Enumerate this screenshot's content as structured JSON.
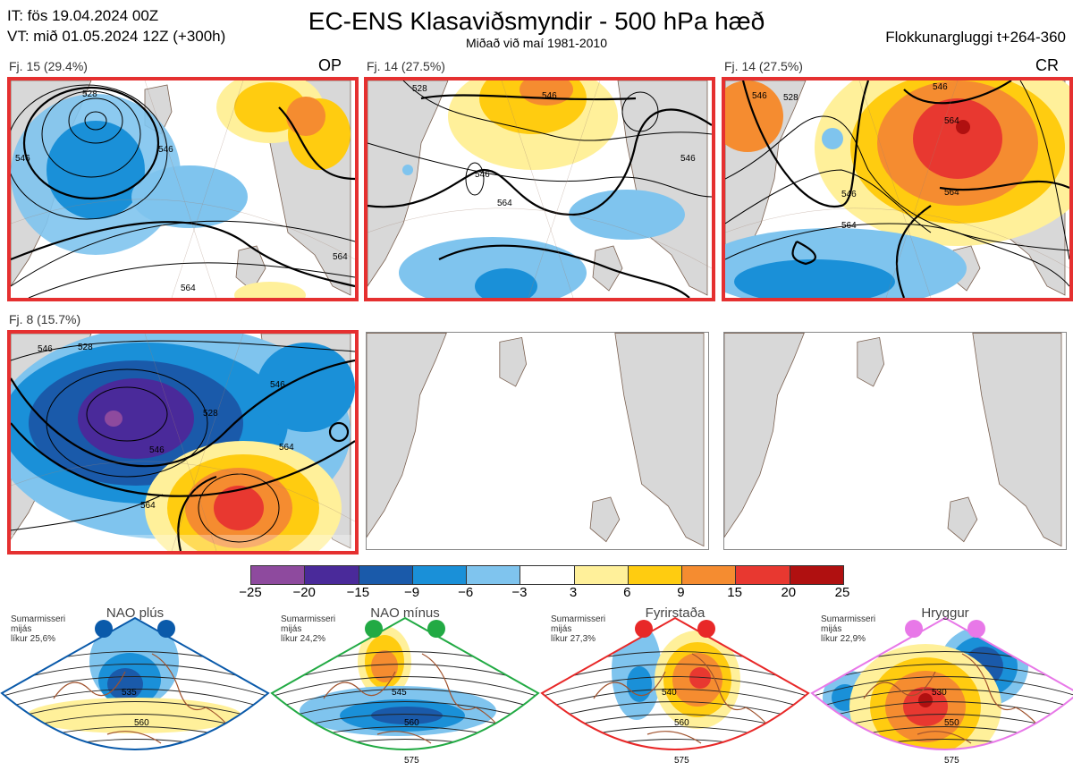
{
  "header": {
    "init_time": "IT: fös 19.04.2024 00Z",
    "valid_time": "VT: mið 01.05.2024 12Z  (+300h)",
    "title": "EC-ENS Klasaviðsmyndir - 500 hPa hæð",
    "subtitle": "Miðað við maí 1981-2010",
    "window": "Flokkunargluggi t+264-360"
  },
  "clusters": [
    {
      "label": "Fj. 15 (29.4%)",
      "code": "OP",
      "highlighted": true
    },
    {
      "label": "Fj. 14 (27.5%)",
      "code": "",
      "highlighted": true
    },
    {
      "label": "Fj. 14 (27.5%)",
      "code": "CR",
      "highlighted": true
    },
    {
      "label": "Fj. 8 (15.7%)",
      "code": "",
      "highlighted": true
    },
    {
      "label": "",
      "code": "",
      "highlighted": false
    },
    {
      "label": "",
      "code": "",
      "highlighted": false
    }
  ],
  "contour_labels": {
    "p1": [
      "528",
      "546",
      "564",
      "564",
      "546"
    ],
    "p2": [
      "528",
      "546",
      "546",
      "564",
      "546"
    ],
    "p3": [
      "546",
      "528",
      "564",
      "546",
      "564",
      "564",
      "546"
    ],
    "p4": [
      "546",
      "528",
      "528",
      "546",
      "564",
      "564",
      "546"
    ]
  },
  "colorbar": {
    "colors": [
      "#8e4a9e",
      "#4a2a9a",
      "#1a5aaa",
      "#1a90d8",
      "#7fc4ee",
      "#ffffff",
      "#fff09a",
      "#ffcc10",
      "#f58c30",
      "#e83830",
      "#b01010"
    ],
    "ticks": [
      "−25",
      "−20",
      "−15",
      "−9",
      "−6",
      "−3",
      "3",
      "6",
      "9",
      "15",
      "20",
      "25"
    ]
  },
  "regimes": [
    {
      "name": "NAO plús",
      "line1": "Sumarmisseri",
      "line2": "mijás",
      "line3": "líkur 25,6%",
      "color": "#0a5aaa",
      "labels": [
        "535",
        "560"
      ]
    },
    {
      "name": "NAO mínus",
      "line1": "Sumarmisseri",
      "line2": "mijás",
      "line3": "líkur 24,2%",
      "color": "#22aa44",
      "labels": [
        "545",
        "560",
        "575"
      ]
    },
    {
      "name": "Fyrirstaða",
      "line1": "Sumarmisseri",
      "line2": "mijás",
      "line3": "líkur 27,3%",
      "color": "#e82828",
      "labels": [
        "540",
        "560",
        "575"
      ]
    },
    {
      "name": "Hryggur",
      "line1": "Sumarmisseri",
      "line2": "mijás",
      "line3": "líkur 22,9%",
      "color": "#e878e8",
      "labels": [
        "530",
        "550",
        "575"
      ]
    }
  ]
}
